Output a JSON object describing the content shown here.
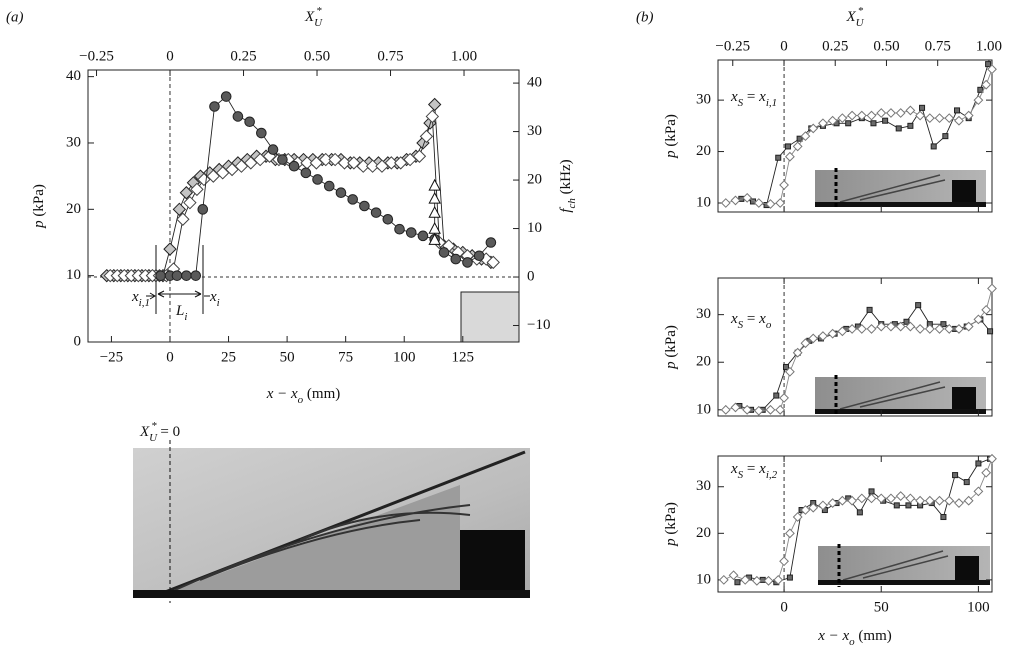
{
  "panel_labels": [
    "(a)",
    "(b)"
  ],
  "image_label": [
    {
      "math": "X"
    },
    {
      "sub": "U"
    },
    {
      "sup": "*"
    },
    {
      "text": " = 0"
    }
  ],
  "chart_data": [
    {
      "type": "line",
      "xlabel": [
        {
          "math": "x − x"
        },
        {
          "sub": "o"
        },
        {
          "text": " (mm)"
        }
      ],
      "ylabel": [
        {
          "math": "p"
        },
        {
          "text": " (kPa)"
        }
      ],
      "y2label": [
        {
          "math": "f"
        },
        {
          "sub": "ch"
        },
        {
          "text": " (kHz)"
        }
      ],
      "x2label": [
        {
          "math": "X"
        },
        {
          "sub": "U"
        },
        {
          "sup": "*"
        }
      ],
      "xlim": [
        -35,
        149
      ],
      "xticks": [
        {
          "value": -25,
          "label": "−25"
        },
        0,
        25,
        50,
        75,
        100,
        125
      ],
      "x2lim": [
        -0.279,
        1.187
      ],
      "x2ticks": [
        {
          "value": -0.25,
          "label": "−0.25"
        },
        0,
        0.25,
        {
          "value": 0.5,
          "label": "0.50"
        },
        0.75,
        {
          "value": 1,
          "label": "1.00"
        }
      ],
      "ylim": [
        0,
        41
      ],
      "yticks": [
        0,
        10,
        20,
        30,
        40
      ],
      "y2lim": [
        -13.4,
        42.7
      ],
      "y2ticks": [
        {
          "value": -10,
          "label": "−10"
        },
        0,
        10,
        20,
        30,
        40
      ],
      "annotations": [
        [
          {
            "math": "x"
          },
          {
            "sub": "i,1"
          }
        ],
        [
          {
            "math": "L"
          },
          {
            "sub": "i"
          }
        ],
        [
          {
            "math": "x"
          },
          {
            "sub": "i"
          }
        ]
      ],
      "series": [
        {
          "marker": "diamond",
          "color": "#c4c4c4",
          "edgecolor": "#222222",
          "x": [
            -27,
            -24,
            -21,
            -18,
            -15,
            -12,
            -9,
            -6,
            -3,
            0,
            4,
            7,
            10,
            13,
            17,
            21,
            25,
            29,
            33,
            37,
            41,
            45,
            49,
            53,
            57,
            61,
            65,
            69,
            73,
            77,
            81,
            85,
            89,
            93,
            97,
            101,
            105,
            108,
            111,
            113,
            117,
            121,
            125,
            129,
            133,
            137
          ],
          "values": [
            10,
            10,
            10,
            10,
            10,
            10,
            10,
            10,
            10,
            14,
            20,
            22.5,
            24,
            25,
            25.5,
            26,
            26.5,
            27,
            27.5,
            28,
            28,
            27.5,
            27.5,
            27.5,
            27.5,
            27.5,
            27.5,
            27.5,
            27.5,
            27,
            27,
            27,
            27,
            27,
            27,
            27.5,
            28,
            30,
            33,
            35.8,
            14.5,
            14,
            13.5,
            13,
            12.5,
            12
          ]
        },
        {
          "marker": "diamond",
          "color": "#ffffff",
          "edgecolor": "#444444",
          "x": [
            -25.5,
            -22.5,
            -19.5,
            -16.5,
            -13.5,
            -10.5,
            -7.5,
            -4.5,
            -1.5,
            1.5,
            5.5,
            8.5,
            11.5,
            14.5,
            18.5,
            22.5,
            26.5,
            30.5,
            34.5,
            38.5,
            42.5,
            46.5,
            50.5,
            54.5,
            58.5,
            62.5,
            66.5,
            70.5,
            74.5,
            78.5,
            82.5,
            86.5,
            90.5,
            94.5,
            98.5,
            102.5,
            106.5,
            109.5,
            112,
            115,
            119,
            123,
            127,
            131,
            135,
            138
          ],
          "values": [
            10,
            10,
            10,
            10,
            10,
            10,
            10,
            10,
            10,
            11,
            18.5,
            21,
            23,
            24.5,
            25,
            25.5,
            26,
            26.5,
            27,
            27.5,
            28,
            27.5,
            27.5,
            27,
            27,
            27,
            27.5,
            27.5,
            27,
            27,
            26.5,
            26.5,
            26.5,
            27,
            27,
            27.5,
            28,
            31,
            34,
            15,
            14.5,
            13.5,
            13,
            12.5,
            12.5,
            12
          ]
        },
        {
          "marker": "circle",
          "color": "#5a5a5a",
          "edgecolor": "#222222",
          "x": [
            -4,
            0,
            3,
            7,
            11,
            14,
            19,
            24,
            29,
            34,
            39,
            44,
            48,
            53,
            58,
            63,
            68,
            73,
            78,
            83,
            88,
            93,
            98,
            103,
            108,
            113,
            117,
            122,
            127,
            132,
            137
          ],
          "values": [
            10,
            10,
            10,
            10,
            10,
            20,
            35.5,
            37,
            34,
            33.2,
            31.5,
            29,
            27.5,
            26.5,
            25.5,
            24.5,
            23.5,
            22.5,
            21.5,
            20.5,
            19.5,
            18.5,
            17,
            16.5,
            16,
            15.5,
            13.5,
            12.5,
            12,
            13,
            15
          ]
        },
        {
          "marker": "triangle",
          "color": "#ffffff",
          "edgecolor": "#111111",
          "axis": "y2",
          "x": [
            113,
            113,
            113,
            113,
            113
          ],
          "values": [
            18.8,
            16.1,
            13.2,
            9.9,
            7.6
          ]
        }
      ]
    },
    {
      "type": "line",
      "ylabel": [
        {
          "math": "p"
        },
        {
          "text": " (kPa)"
        }
      ],
      "x2label": [
        {
          "math": "X"
        },
        {
          "sub": "U"
        },
        {
          "sup": "*"
        }
      ],
      "xlim": [
        -34,
        107
      ],
      "xticks": [
        0,
        50,
        100
      ],
      "xticklabels": false,
      "x2lim": [
        -0.322,
        1.015
      ],
      "x2ticks": [
        {
          "value": -0.25,
          "label": "−0.25"
        },
        0,
        0.25,
        {
          "value": 0.5,
          "label": "0.50"
        },
        0.75,
        {
          "value": 1,
          "label": "1.00"
        }
      ],
      "ylim": [
        8.25,
        37.8
      ],
      "yticks": [
        10,
        20,
        30
      ],
      "annotations": [
        [
          {
            "math": "x"
          },
          {
            "sub": "S"
          },
          {
            "text": " = "
          },
          {
            "math": "x"
          },
          {
            "sub": "i,1"
          }
        ]
      ],
      "series": [
        {
          "marker": "square",
          "color": "#6a6a6a",
          "edgecolor": "#222222",
          "x": [
            -22,
            -16,
            -9,
            -3,
            2,
            8,
            14,
            20,
            27,
            33,
            40,
            46,
            52,
            59,
            65,
            71,
            77,
            83,
            89,
            95,
            101,
            105
          ],
          "values": [
            10.8,
            10.3,
            9.6,
            18.8,
            21,
            22.5,
            24.5,
            25,
            25.5,
            25.5,
            26.5,
            25.5,
            26,
            24.5,
            25,
            28.5,
            21,
            23,
            28,
            26.5,
            32,
            37
          ]
        },
        {
          "marker": "diamond",
          "color": "#ffffff",
          "edgecolor": "#777777",
          "x": [
            -30,
            -25,
            -19,
            -13,
            -7,
            -2,
            0,
            3,
            7,
            11,
            15,
            20,
            25,
            30,
            35,
            40,
            45,
            50,
            55,
            60,
            65,
            70,
            75,
            80,
            85,
            90,
            95,
            100,
            104,
            107
          ],
          "values": [
            10,
            10.5,
            11,
            10,
            9.8,
            10,
            13.5,
            19,
            21,
            23,
            24.5,
            25.5,
            26,
            26.5,
            27,
            27,
            27,
            27.5,
            27.5,
            27.5,
            28,
            27,
            26.5,
            26.5,
            26.5,
            26,
            27,
            30,
            33,
            36
          ]
        }
      ]
    },
    {
      "type": "line",
      "ylabel": [
        {
          "math": "p"
        },
        {
          "text": " (kPa)"
        }
      ],
      "xlim": [
        -34,
        107
      ],
      "xticks": [
        0,
        50,
        100
      ],
      "xticklabels": false,
      "ylim": [
        8.7,
        37.7
      ],
      "yticks": [
        10,
        20,
        30
      ],
      "annotations": [
        [
          {
            "math": "x"
          },
          {
            "sub": "S"
          },
          {
            "text": " = "
          },
          {
            "math": "x"
          },
          {
            "sub": "o"
          }
        ]
      ],
      "series": [
        {
          "marker": "square",
          "color": "#6a6a6a",
          "edgecolor": "#222222",
          "x": [
            -23,
            -17,
            -11,
            -4,
            1,
            7,
            13,
            19,
            26,
            32,
            38,
            44,
            50,
            57,
            63,
            69,
            75,
            82,
            88,
            94,
            101,
            106
          ],
          "values": [
            10.8,
            10,
            10,
            13,
            19,
            22,
            24.5,
            25,
            26,
            27,
            27.5,
            31,
            28,
            28,
            28.5,
            32,
            28,
            28,
            27,
            27.5,
            29,
            26.5
          ]
        },
        {
          "marker": "diamond",
          "color": "#ffffff",
          "edgecolor": "#777777",
          "x": [
            -30,
            -25,
            -19,
            -13,
            -7,
            -2,
            0,
            3,
            7,
            11,
            15,
            20,
            25,
            30,
            35,
            40,
            45,
            50,
            55,
            60,
            65,
            70,
            75,
            80,
            85,
            90,
            95,
            100,
            104,
            107
          ],
          "values": [
            10,
            10.5,
            10,
            9.8,
            10,
            10,
            12.5,
            18,
            22,
            24,
            25,
            25.5,
            26,
            26.5,
            27,
            27,
            27,
            27.5,
            27.5,
            27.5,
            27.5,
            27,
            27,
            27,
            27,
            27,
            27.5,
            29,
            31,
            35.5
          ]
        }
      ]
    },
    {
      "type": "line",
      "xlabel": [
        {
          "math": "x − x"
        },
        {
          "sub": "o"
        },
        {
          "text": " (mm)"
        }
      ],
      "ylabel": [
        {
          "math": "p"
        },
        {
          "text": " (kPa)"
        }
      ],
      "xlim": [
        -34,
        107
      ],
      "xticks": [
        0,
        50,
        100
      ],
      "ylim": [
        7.4,
        36.6
      ],
      "yticks": [
        10,
        20,
        30
      ],
      "annotations": [
        [
          {
            "math": "x"
          },
          {
            "sub": "S"
          },
          {
            "text": " = "
          },
          {
            "math": "x"
          },
          {
            "sub": "i,2"
          }
        ]
      ],
      "series": [
        {
          "marker": "square",
          "color": "#6a6a6a",
          "edgecolor": "#222222",
          "x": [
            -24,
            -18,
            -11,
            -4,
            3,
            9,
            15,
            21,
            27,
            33,
            39,
            45,
            51,
            58,
            64,
            70,
            76,
            82,
            88,
            94,
            100,
            106
          ],
          "values": [
            9.5,
            10.5,
            10,
            9.5,
            10.5,
            25,
            26.5,
            25,
            26.5,
            27.5,
            24.5,
            29,
            27,
            26,
            26,
            26,
            26.5,
            23.5,
            32.5,
            31,
            35,
            36
          ]
        },
        {
          "marker": "diamond",
          "color": "#ffffff",
          "edgecolor": "#777777",
          "x": [
            -31,
            -26,
            -20,
            -14,
            -8,
            -3,
            0,
            3,
            7,
            11,
            15,
            20,
            25,
            30,
            35,
            40,
            45,
            50,
            55,
            60,
            65,
            70,
            75,
            80,
            85,
            90,
            95,
            100,
            104,
            107
          ],
          "values": [
            10,
            11,
            10,
            9.8,
            9.8,
            10,
            14,
            20,
            23.5,
            25,
            25.5,
            26,
            26.5,
            27,
            27,
            27.5,
            27.5,
            27.5,
            27.5,
            28,
            27.5,
            27,
            27,
            27,
            27,
            26.5,
            27,
            29,
            33,
            36
          ]
        }
      ]
    }
  ]
}
